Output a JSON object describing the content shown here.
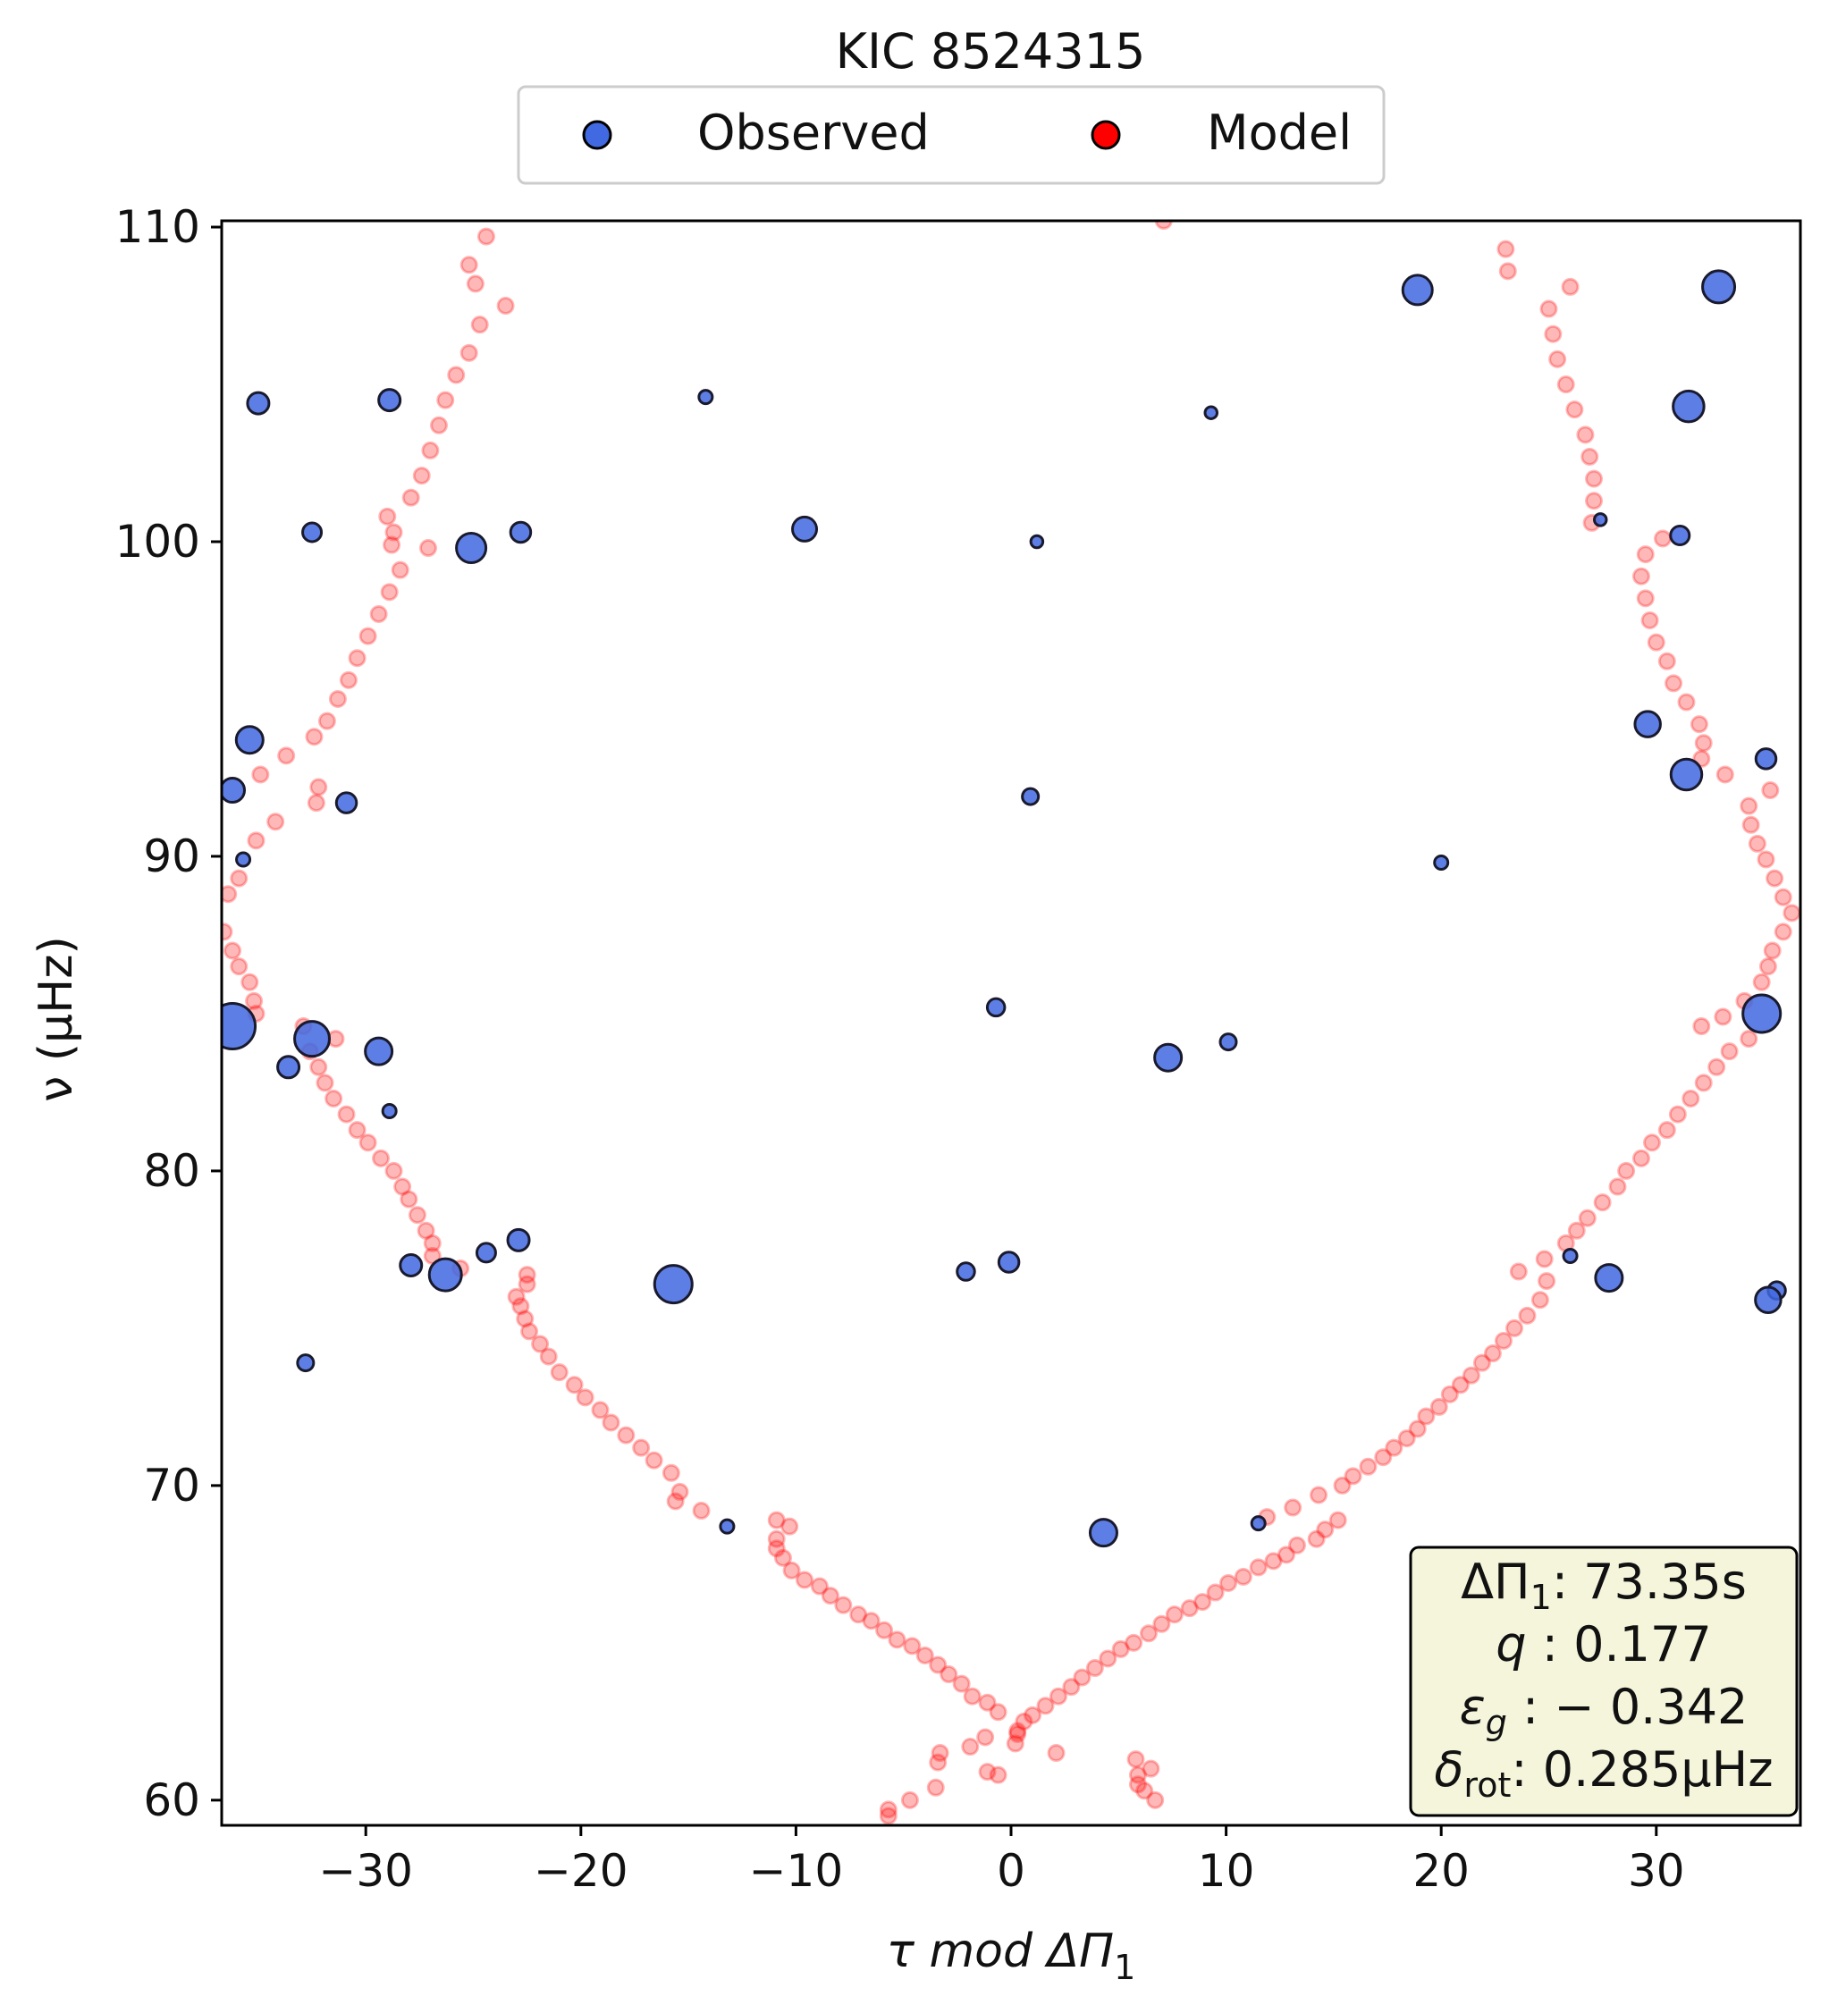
{
  "chart_data": {
    "type": "scatter",
    "title": "KIC 8524315",
    "xlabel": "τ mod ΔΠ",
    "xlabel_sub": "1",
    "ylabel": "ν (μHz)",
    "xlim": [
      -36.7,
      36.7
    ],
    "ylim": [
      59.2,
      110.2
    ],
    "xticks": [
      -30,
      -20,
      -10,
      0,
      10,
      20,
      30
    ],
    "xtick_labels": [
      "−30",
      "−20",
      "−10",
      "0",
      "10",
      "20",
      "30"
    ],
    "yticks": [
      60,
      70,
      80,
      90,
      100,
      110
    ],
    "ytick_labels": [
      "60",
      "70",
      "80",
      "90",
      "100",
      "110"
    ],
    "grid": false,
    "legend": {
      "placement": "top-center, above plot",
      "entries": [
        {
          "label": "Observed",
          "color": "#4169e1"
        },
        {
          "label": "Model",
          "color": "#ff0000"
        }
      ]
    },
    "parameters_box": {
      "placement": "bottom-right",
      "background": "#f5f5dc",
      "lines": [
        {
          "name": "ΔΠ",
          "sub": "1",
          "value": ": 73.35s"
        },
        {
          "name": "q",
          "sub": "",
          "value": " :  0.177"
        },
        {
          "name": "ε",
          "sub": "g",
          "value": " : − 0.342"
        },
        {
          "name": "δ",
          "sub": "rot",
          "value": ": 0.285μHz"
        }
      ]
    },
    "series": [
      {
        "name": "Observed",
        "color": "#4169e1",
        "points": [
          [
            -36.2,
            84.6,
            3
          ],
          [
            -32.5,
            84.2,
            2.2
          ],
          [
            -29.4,
            83.8,
            1.6
          ],
          [
            -33.6,
            83.3,
            1.2
          ],
          [
            -28.9,
            81.9,
            0.6
          ],
          [
            -36.2,
            92.1,
            1.4
          ],
          [
            -35.4,
            93.7,
            1.6
          ],
          [
            -35.0,
            104.4,
            1.2
          ],
          [
            -28.9,
            104.5,
            1.2
          ],
          [
            -32.5,
            100.3,
            1.0
          ],
          [
            -22.8,
            100.3,
            1.1
          ],
          [
            -25.1,
            99.8,
            1.8
          ],
          [
            -30.9,
            91.7,
            1.1
          ],
          [
            -35.7,
            89.9,
            0.6
          ],
          [
            -14.2,
            104.6,
            0.6
          ],
          [
            -9.6,
            100.4,
            1.4
          ],
          [
            1.2,
            100.0,
            0.5
          ],
          [
            0.9,
            91.9,
            0.8
          ],
          [
            -0.7,
            85.2,
            0.9
          ],
          [
            -2.1,
            76.8,
            0.9
          ],
          [
            -0.1,
            77.1,
            1.1
          ],
          [
            -15.7,
            76.4,
            2.4
          ],
          [
            -26.3,
            76.7,
            2.0
          ],
          [
            -27.9,
            77.0,
            1.2
          ],
          [
            -24.4,
            77.4,
            1.0
          ],
          [
            -22.9,
            77.8,
            1.2
          ],
          [
            -32.8,
            73.9,
            0.8
          ],
          [
            -13.2,
            68.7,
            0.6
          ],
          [
            4.3,
            68.5,
            1.6
          ],
          [
            7.3,
            83.6,
            1.6
          ],
          [
            10.1,
            84.1,
            0.8
          ],
          [
            9.3,
            104.1,
            0.5
          ],
          [
            18.9,
            108.0,
            1.8
          ],
          [
            32.9,
            108.1,
            2.0
          ],
          [
            31.5,
            104.3,
            1.9
          ],
          [
            20.0,
            89.8,
            0.6
          ],
          [
            29.6,
            94.2,
            1.5
          ],
          [
            31.1,
            100.2,
            1.0
          ],
          [
            27.4,
            100.7,
            0.5
          ],
          [
            31.4,
            92.6,
            1.9
          ],
          [
            35.1,
            93.1,
            1.1
          ],
          [
            34.9,
            85.0,
            2.4
          ],
          [
            35.6,
            76.2,
            0.9
          ],
          [
            35.2,
            75.9,
            1.5
          ],
          [
            27.8,
            76.6,
            1.6
          ],
          [
            26.0,
            77.3,
            0.6
          ],
          [
            11.5,
            68.8,
            0.6
          ]
        ]
      },
      {
        "name": "Model",
        "color": "#ff0000",
        "points": [
          [
            0.3,
            62.2
          ],
          [
            0.6,
            62.5
          ],
          [
            1.0,
            62.7
          ],
          [
            1.6,
            63.0
          ],
          [
            2.2,
            63.3
          ],
          [
            2.8,
            63.6
          ],
          [
            3.3,
            63.9
          ],
          [
            3.9,
            64.2
          ],
          [
            4.5,
            64.5
          ],
          [
            5.1,
            64.8
          ],
          [
            5.7,
            65.0
          ],
          [
            6.4,
            65.3
          ],
          [
            7.0,
            65.6
          ],
          [
            7.6,
            65.9
          ],
          [
            8.3,
            66.1
          ],
          [
            8.9,
            66.3
          ],
          [
            9.5,
            66.6
          ],
          [
            10.1,
            66.9
          ],
          [
            10.8,
            67.1
          ],
          [
            11.5,
            67.4
          ],
          [
            12.2,
            67.6
          ],
          [
            12.8,
            67.8
          ],
          [
            13.3,
            68.1
          ],
          [
            14.2,
            68.3
          ],
          [
            14.6,
            68.6
          ],
          [
            15.2,
            68.9
          ],
          [
            11.9,
            69.0
          ],
          [
            13.1,
            69.3
          ],
          [
            14.3,
            69.7
          ],
          [
            15.4,
            70.0
          ],
          [
            15.9,
            70.3
          ],
          [
            16.6,
            70.6
          ],
          [
            17.3,
            70.9
          ],
          [
            17.8,
            71.2
          ],
          [
            18.4,
            71.5
          ],
          [
            18.9,
            71.8
          ],
          [
            19.3,
            72.2
          ],
          [
            19.9,
            72.5
          ],
          [
            20.4,
            72.9
          ],
          [
            20.9,
            73.2
          ],
          [
            21.4,
            73.5
          ],
          [
            21.9,
            73.9
          ],
          [
            22.4,
            74.2
          ],
          [
            22.9,
            74.6
          ],
          [
            23.4,
            75.0
          ],
          [
            24.0,
            75.4
          ],
          [
            24.6,
            75.9
          ],
          [
            24.9,
            76.5
          ],
          [
            23.6,
            76.8
          ],
          [
            24.8,
            77.2
          ],
          [
            25.8,
            77.7
          ],
          [
            26.3,
            78.1
          ],
          [
            26.8,
            78.5
          ],
          [
            27.5,
            79.0
          ],
          [
            28.2,
            79.5
          ],
          [
            28.6,
            80.0
          ],
          [
            29.3,
            80.4
          ],
          [
            29.8,
            80.9
          ],
          [
            30.5,
            81.3
          ],
          [
            31.0,
            81.8
          ],
          [
            31.6,
            82.3
          ],
          [
            32.2,
            82.8
          ],
          [
            32.8,
            83.3
          ],
          [
            33.4,
            83.8
          ],
          [
            34.3,
            84.2
          ],
          [
            32.1,
            84.6
          ],
          [
            33.1,
            84.9
          ],
          [
            34.1,
            85.4
          ],
          [
            34.9,
            86.0
          ],
          [
            35.2,
            86.5
          ],
          [
            35.4,
            87.0
          ],
          [
            35.9,
            87.6
          ],
          [
            36.3,
            88.2
          ],
          [
            35.9,
            88.7
          ],
          [
            35.5,
            89.3
          ],
          [
            35.1,
            89.9
          ],
          [
            34.7,
            90.4
          ],
          [
            34.4,
            91.0
          ],
          [
            34.3,
            91.6
          ],
          [
            35.3,
            92.1
          ],
          [
            33.2,
            92.6
          ],
          [
            32.1,
            93.1
          ],
          [
            32.2,
            93.6
          ],
          [
            32.0,
            94.2
          ],
          [
            31.4,
            94.9
          ],
          [
            30.8,
            95.5
          ],
          [
            30.5,
            96.2
          ],
          [
            30.0,
            96.8
          ],
          [
            29.7,
            97.5
          ],
          [
            29.5,
            98.2
          ],
          [
            29.3,
            98.9
          ],
          [
            29.5,
            99.6
          ],
          [
            30.3,
            100.1
          ],
          [
            27.0,
            100.6
          ],
          [
            27.1,
            101.3
          ],
          [
            27.1,
            102.0
          ],
          [
            26.9,
            102.7
          ],
          [
            26.7,
            103.4
          ],
          [
            26.2,
            104.2
          ],
          [
            25.8,
            105.0
          ],
          [
            25.4,
            105.8
          ],
          [
            25.2,
            106.6
          ],
          [
            25.0,
            107.4
          ],
          [
            26.0,
            108.1
          ],
          [
            23.1,
            108.6
          ],
          [
            23.0,
            109.3
          ],
          [
            0.2,
            61.8
          ],
          [
            -0.6,
            62.8
          ],
          [
            -1.1,
            63.1
          ],
          [
            -1.8,
            63.3
          ],
          [
            -2.3,
            63.7
          ],
          [
            -2.9,
            64.0
          ],
          [
            -3.4,
            64.3
          ],
          [
            -4.0,
            64.6
          ],
          [
            -4.6,
            64.9
          ],
          [
            -5.3,
            65.1
          ],
          [
            -5.9,
            65.4
          ],
          [
            -6.5,
            65.7
          ],
          [
            -7.1,
            65.9
          ],
          [
            -7.8,
            66.2
          ],
          [
            -8.4,
            66.5
          ],
          [
            -8.9,
            66.8
          ],
          [
            -9.6,
            67.0
          ],
          [
            -10.2,
            67.3
          ],
          [
            -10.6,
            67.7
          ],
          [
            -10.9,
            68.0
          ],
          [
            -10.9,
            68.3
          ],
          [
            -10.3,
            68.7
          ],
          [
            -10.9,
            68.9
          ],
          [
            -14.4,
            69.2
          ],
          [
            -15.6,
            69.5
          ],
          [
            -15.4,
            69.8
          ],
          [
            -15.8,
            70.4
          ],
          [
            -16.6,
            70.8
          ],
          [
            -17.2,
            71.2
          ],
          [
            -17.9,
            71.6
          ],
          [
            -18.6,
            72.0
          ],
          [
            -19.1,
            72.4
          ],
          [
            -19.8,
            72.8
          ],
          [
            -20.3,
            73.2
          ],
          [
            -21.0,
            73.6
          ],
          [
            -21.5,
            74.1
          ],
          [
            -21.9,
            74.5
          ],
          [
            -22.4,
            74.9
          ],
          [
            -22.6,
            75.3
          ],
          [
            -22.8,
            75.7
          ],
          [
            -23.0,
            76.0
          ],
          [
            -22.5,
            76.4
          ],
          [
            -22.5,
            76.7
          ],
          [
            -25.6,
            76.9
          ],
          [
            -26.9,
            77.3
          ],
          [
            -26.9,
            77.7
          ],
          [
            -27.2,
            78.1
          ],
          [
            -27.6,
            78.6
          ],
          [
            -28.0,
            79.1
          ],
          [
            -28.3,
            79.5
          ],
          [
            -28.7,
            80.0
          ],
          [
            -29.3,
            80.4
          ],
          [
            -29.9,
            80.9
          ],
          [
            -30.4,
            81.3
          ],
          [
            -30.9,
            81.8
          ],
          [
            -31.5,
            82.3
          ],
          [
            -31.9,
            82.8
          ],
          [
            -32.2,
            83.3
          ],
          [
            -31.4,
            84.2
          ],
          [
            -32.6,
            83.8
          ],
          [
            -32.9,
            84.6
          ],
          [
            -35.1,
            85.0
          ],
          [
            -35.2,
            85.4
          ],
          [
            -35.4,
            86.0
          ],
          [
            -35.9,
            86.5
          ],
          [
            -36.2,
            87.0
          ],
          [
            -36.6,
            87.6
          ],
          [
            -36.4,
            88.8
          ],
          [
            -35.9,
            89.3
          ],
          [
            -35.1,
            90.5
          ],
          [
            -34.2,
            91.1
          ],
          [
            -32.3,
            91.7
          ],
          [
            -32.2,
            92.2
          ],
          [
            -34.9,
            92.6
          ],
          [
            -33.7,
            93.2
          ],
          [
            -32.4,
            93.8
          ],
          [
            -31.8,
            94.3
          ],
          [
            -31.3,
            95.0
          ],
          [
            -30.8,
            95.6
          ],
          [
            -30.4,
            96.3
          ],
          [
            -29.9,
            97.0
          ],
          [
            -29.4,
            97.7
          ],
          [
            -28.9,
            98.4
          ],
          [
            -28.4,
            99.1
          ],
          [
            -28.8,
            99.9
          ],
          [
            -27.1,
            99.8
          ],
          [
            -28.7,
            100.3
          ],
          [
            -29.0,
            100.8
          ],
          [
            -27.9,
            101.4
          ],
          [
            -27.4,
            102.1
          ],
          [
            -27.0,
            102.9
          ],
          [
            -26.6,
            103.7
          ],
          [
            -26.3,
            104.5
          ],
          [
            -25.8,
            105.3
          ],
          [
            -25.2,
            106.0
          ],
          [
            -24.7,
            106.9
          ],
          [
            -23.5,
            107.5
          ],
          [
            -24.9,
            108.2
          ],
          [
            -25.2,
            108.8
          ],
          [
            -24.4,
            109.7
          ],
          [
            7.1,
            110.2
          ],
          [
            -3.4,
            61.2
          ],
          [
            -3.3,
            61.5
          ],
          [
            -1.9,
            61.7
          ],
          [
            -1.2,
            62.0
          ],
          [
            -3.5,
            60.4
          ],
          [
            -4.7,
            60.0
          ],
          [
            -5.7,
            59.7
          ],
          [
            -5.7,
            59.5
          ],
          [
            -1.1,
            60.9
          ],
          [
            -0.6,
            60.8
          ],
          [
            2.1,
            61.5
          ],
          [
            5.8,
            61.3
          ],
          [
            5.9,
            60.8
          ],
          [
            6.5,
            61.0
          ],
          [
            5.9,
            60.5
          ],
          [
            6.2,
            60.3
          ],
          [
            6.7,
            60.0
          ],
          [
            0.3,
            62.1
          ]
        ]
      }
    ]
  }
}
